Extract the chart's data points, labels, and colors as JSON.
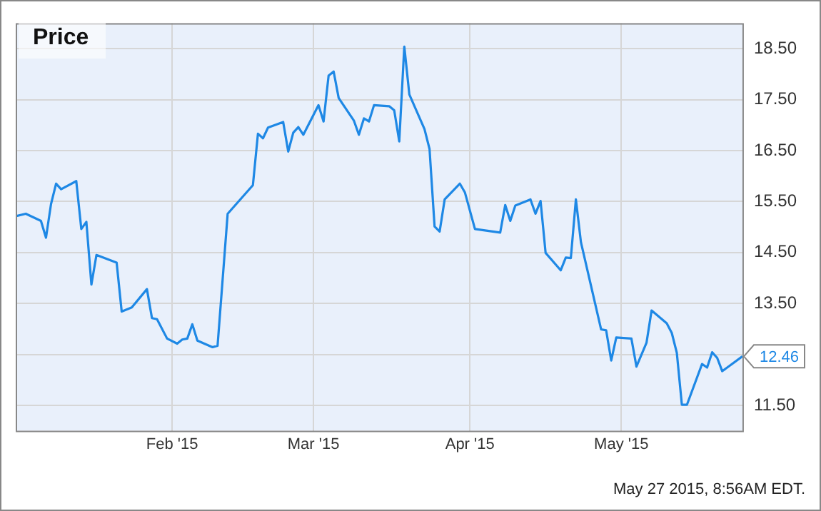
{
  "chart_data": {
    "type": "line",
    "title": "Price",
    "x": [
      "2015-01-01",
      "2015-01-03",
      "2015-01-06",
      "2015-01-07",
      "2015-01-08",
      "2015-01-09",
      "2015-01-10",
      "2015-01-13",
      "2015-01-14",
      "2015-01-15",
      "2015-01-16",
      "2015-01-17",
      "2015-01-21",
      "2015-01-22",
      "2015-01-24",
      "2015-01-27",
      "2015-01-28",
      "2015-01-29",
      "2015-01-31",
      "2015-02-02",
      "2015-02-03",
      "2015-02-04",
      "2015-02-05",
      "2015-02-06",
      "2015-02-09",
      "2015-02-10",
      "2015-02-12",
      "2015-02-17",
      "2015-02-18",
      "2015-02-19",
      "2015-02-20",
      "2015-02-23",
      "2015-02-24",
      "2015-02-25",
      "2015-02-26",
      "2015-02-27",
      "2015-03-02",
      "2015-03-03",
      "2015-03-04",
      "2015-03-05",
      "2015-03-06",
      "2015-03-09",
      "2015-03-10",
      "2015-03-11",
      "2015-03-12",
      "2015-03-13",
      "2015-03-16",
      "2015-03-17",
      "2015-03-18",
      "2015-03-19",
      "2015-03-20",
      "2015-03-23",
      "2015-03-24",
      "2015-03-25",
      "2015-03-26",
      "2015-03-27",
      "2015-03-30",
      "2015-03-31",
      "2015-04-02",
      "2015-04-07",
      "2015-04-08",
      "2015-04-09",
      "2015-04-10",
      "2015-04-13",
      "2015-04-14",
      "2015-04-15",
      "2015-04-16",
      "2015-04-19",
      "2015-04-20",
      "2015-04-21",
      "2015-04-22",
      "2015-04-23",
      "2015-04-27",
      "2015-04-28",
      "2015-04-29",
      "2015-04-30",
      "2015-05-03",
      "2015-05-04",
      "2015-05-06",
      "2015-05-07",
      "2015-05-10",
      "2015-05-11",
      "2015-05-12",
      "2015-05-13",
      "2015-05-14",
      "2015-05-17",
      "2015-05-18",
      "2015-05-19",
      "2015-05-20",
      "2015-05-21",
      "2015-05-25"
    ],
    "series": [
      {
        "color": "#1e88e5",
        "values": [
          15.21,
          15.26,
          15.12,
          14.79,
          15.45,
          15.85,
          15.74,
          15.9,
          14.96,
          15.1,
          13.87,
          14.45,
          14.3,
          13.34,
          13.42,
          13.78,
          13.21,
          13.19,
          12.81,
          12.71,
          12.79,
          12.81,
          13.09,
          12.77,
          12.64,
          12.67,
          15.26,
          15.82,
          16.83,
          16.74,
          16.95,
          17.06,
          16.48,
          16.85,
          16.96,
          16.81,
          17.39,
          17.07,
          17.97,
          18.05,
          17.53,
          17.09,
          16.81,
          17.13,
          17.07,
          17.39,
          17.37,
          17.29,
          16.68,
          18.54,
          17.6,
          16.92,
          16.53,
          15.01,
          14.91,
          15.54,
          15.85,
          15.68,
          14.96,
          14.89,
          15.43,
          15.12,
          15.42,
          15.54,
          15.26,
          15.51,
          14.49,
          14.15,
          14.4,
          14.39,
          15.54,
          14.7,
          12.99,
          12.97,
          12.38,
          12.83,
          12.81,
          12.26,
          12.73,
          13.36,
          13.11,
          12.92,
          12.53,
          11.51,
          11.51,
          12.31,
          12.24,
          12.54,
          12.43,
          12.17,
          12.46
        ],
        "value_labels": [
          null,
          null,
          null,
          null,
          null,
          null,
          null,
          null,
          null,
          null,
          null,
          null,
          null,
          null,
          null,
          null,
          null,
          null,
          null,
          null,
          null,
          null,
          null,
          null,
          null,
          null,
          null,
          null,
          null,
          null,
          null,
          null,
          null,
          null,
          null,
          null,
          null,
          null,
          null,
          null,
          null,
          null,
          null,
          null,
          null,
          null,
          null,
          null,
          null,
          null,
          null,
          null,
          null,
          null,
          null,
          null,
          null,
          null,
          null,
          null,
          null,
          null,
          null,
          null,
          null,
          null,
          null,
          null,
          null,
          null,
          null,
          null,
          null,
          null,
          null,
          null,
          null,
          null,
          null,
          null,
          null,
          null,
          null,
          null,
          null,
          null,
          null,
          null,
          null,
          null,
          "12.46"
        ]
      }
    ],
    "xlim": [
      "2015-01-01",
      "2015-05-25"
    ],
    "xticks": [
      {
        "value": "2015-02-01",
        "label": "Feb '15"
      },
      {
        "value": "2015-03-01",
        "label": "Mar '15"
      },
      {
        "value": "2015-04-01",
        "label": "Apr '15"
      },
      {
        "value": "2015-05-01",
        "label": "May '15"
      }
    ],
    "ylim": [
      11.0,
      19.0
    ],
    "yticks": [
      {
        "value": 11.5,
        "label": "11.50"
      },
      {
        "value": 12.5,
        "label": null
      },
      {
        "value": 13.5,
        "label": "13.50"
      },
      {
        "value": 14.5,
        "label": "14.50"
      },
      {
        "value": 15.5,
        "label": "15.50"
      },
      {
        "value": 16.5,
        "label": "16.50"
      },
      {
        "value": 17.5,
        "label": "17.50"
      },
      {
        "value": 18.5,
        "label": "18.50"
      }
    ],
    "grid": true,
    "legend": false,
    "marker": "none",
    "line_style": "solid",
    "annotations": [
      "May 27 2015, 8:56AM EDT."
    ]
  }
}
